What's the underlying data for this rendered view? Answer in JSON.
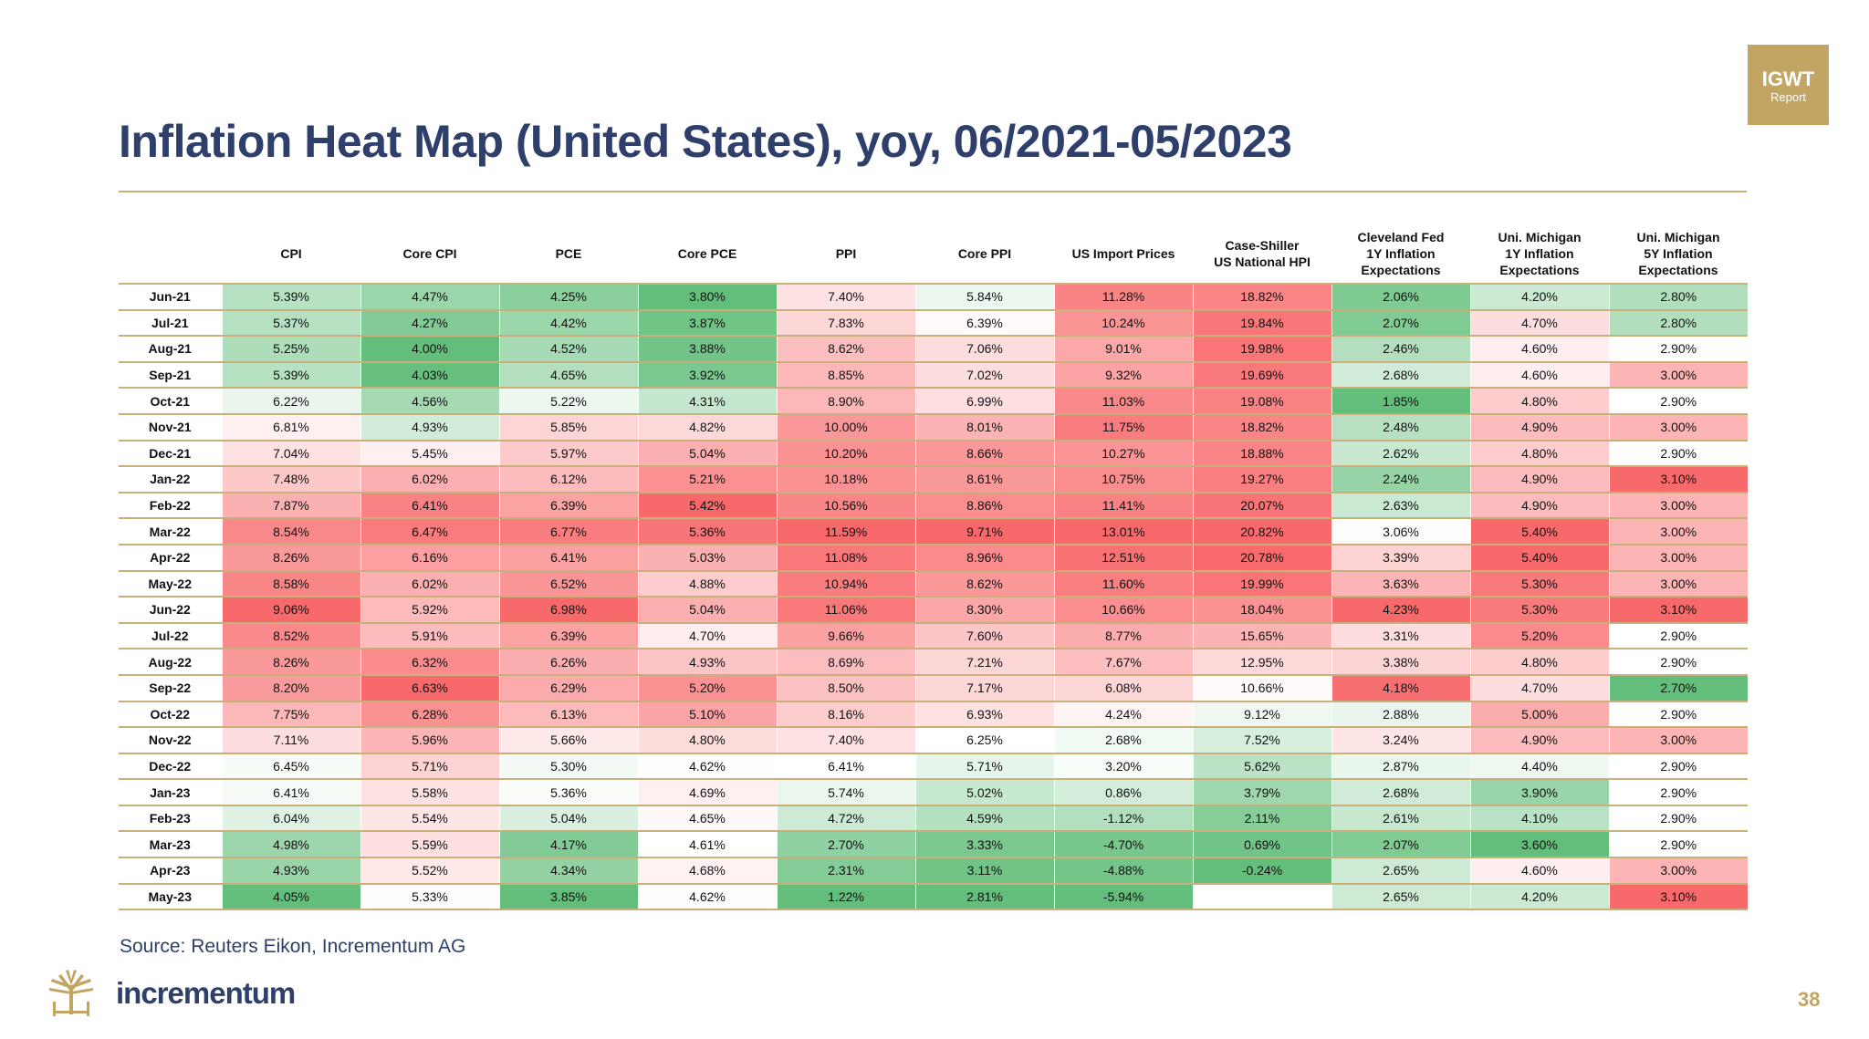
{
  "badge": {
    "line1": "IGWT",
    "line2": "Report"
  },
  "title": "Inflation Heat Map (United States), yoy, 06/2021-05/2023",
  "source": "Source: Reuters Eikon, Incrementum AG",
  "logo_text": "incrementum",
  "page_number": "38",
  "colors": {
    "high": "#f8696b",
    "mid": "#ffffff",
    "low": "#63be7b",
    "accent": "#c2a463",
    "title": "#2e3f6c"
  },
  "chart_data": {
    "type": "heatmap",
    "title": "Inflation Heat Map (United States), yoy, 06/2021-05/2023",
    "columns": [
      "CPI",
      "Core CPI",
      "PCE",
      "Core PCE",
      "PPI",
      "Core PPI",
      "US Import Prices",
      "Case-Shiller\nUS National HPI",
      "Cleveland Fed\n1Y Inflation\nExpectations",
      "Uni. Michigan\n1Y Inflation\nExpectations",
      "Uni. Michigan\n5Y Inflation\nExpectations"
    ],
    "rows": [
      "Jun-21",
      "Jul-21",
      "Aug-21",
      "Sep-21",
      "Oct-21",
      "Nov-21",
      "Dec-21",
      "Jan-22",
      "Feb-22",
      "Mar-22",
      "Apr-22",
      "May-22",
      "Jun-22",
      "Jul-22",
      "Aug-22",
      "Sep-22",
      "Oct-22",
      "Nov-22",
      "Dec-22",
      "Jan-23",
      "Feb-23",
      "Mar-23",
      "Apr-23",
      "May-23"
    ],
    "values": [
      [
        "5.39%",
        "4.47%",
        "4.25%",
        "3.80%",
        "7.40%",
        "5.84%",
        "11.28%",
        "18.82%",
        "2.06%",
        "4.20%",
        "2.80%"
      ],
      [
        "5.37%",
        "4.27%",
        "4.42%",
        "3.87%",
        "7.83%",
        "6.39%",
        "10.24%",
        "19.84%",
        "2.07%",
        "4.70%",
        "2.80%"
      ],
      [
        "5.25%",
        "4.00%",
        "4.52%",
        "3.88%",
        "8.62%",
        "7.06%",
        "9.01%",
        "19.98%",
        "2.46%",
        "4.60%",
        "2.90%"
      ],
      [
        "5.39%",
        "4.03%",
        "4.65%",
        "3.92%",
        "8.85%",
        "7.02%",
        "9.32%",
        "19.69%",
        "2.68%",
        "4.60%",
        "3.00%"
      ],
      [
        "6.22%",
        "4.56%",
        "5.22%",
        "4.31%",
        "8.90%",
        "6.99%",
        "11.03%",
        "19.08%",
        "1.85%",
        "4.80%",
        "2.90%"
      ],
      [
        "6.81%",
        "4.93%",
        "5.85%",
        "4.82%",
        "10.00%",
        "8.01%",
        "11.75%",
        "18.82%",
        "2.48%",
        "4.90%",
        "3.00%"
      ],
      [
        "7.04%",
        "5.45%",
        "5.97%",
        "5.04%",
        "10.20%",
        "8.66%",
        "10.27%",
        "18.88%",
        "2.62%",
        "4.80%",
        "2.90%"
      ],
      [
        "7.48%",
        "6.02%",
        "6.12%",
        "5.21%",
        "10.18%",
        "8.61%",
        "10.75%",
        "19.27%",
        "2.24%",
        "4.90%",
        "3.10%"
      ],
      [
        "7.87%",
        "6.41%",
        "6.39%",
        "5.42%",
        "10.56%",
        "8.86%",
        "11.41%",
        "20.07%",
        "2.63%",
        "4.90%",
        "3.00%"
      ],
      [
        "8.54%",
        "6.47%",
        "6.77%",
        "5.36%",
        "11.59%",
        "9.71%",
        "13.01%",
        "20.82%",
        "3.06%",
        "5.40%",
        "3.00%"
      ],
      [
        "8.26%",
        "6.16%",
        "6.41%",
        "5.03%",
        "11.08%",
        "8.96%",
        "12.51%",
        "20.78%",
        "3.39%",
        "5.40%",
        "3.00%"
      ],
      [
        "8.58%",
        "6.02%",
        "6.52%",
        "4.88%",
        "10.94%",
        "8.62%",
        "11.60%",
        "19.99%",
        "3.63%",
        "5.30%",
        "3.00%"
      ],
      [
        "9.06%",
        "5.92%",
        "6.98%",
        "5.04%",
        "11.06%",
        "8.30%",
        "10.66%",
        "18.04%",
        "4.23%",
        "5.30%",
        "3.10%"
      ],
      [
        "8.52%",
        "5.91%",
        "6.39%",
        "4.70%",
        "9.66%",
        "7.60%",
        "8.77%",
        "15.65%",
        "3.31%",
        "5.20%",
        "2.90%"
      ],
      [
        "8.26%",
        "6.32%",
        "6.26%",
        "4.93%",
        "8.69%",
        "7.21%",
        "7.67%",
        "12.95%",
        "3.38%",
        "4.80%",
        "2.90%"
      ],
      [
        "8.20%",
        "6.63%",
        "6.29%",
        "5.20%",
        "8.50%",
        "7.17%",
        "6.08%",
        "10.66%",
        "4.18%",
        "4.70%",
        "2.70%"
      ],
      [
        "7.75%",
        "6.28%",
        "6.13%",
        "5.10%",
        "8.16%",
        "6.93%",
        "4.24%",
        "9.12%",
        "2.88%",
        "5.00%",
        "2.90%"
      ],
      [
        "7.11%",
        "5.96%",
        "5.66%",
        "4.80%",
        "7.40%",
        "6.25%",
        "2.68%",
        "7.52%",
        "3.24%",
        "4.90%",
        "3.00%"
      ],
      [
        "6.45%",
        "5.71%",
        "5.30%",
        "4.62%",
        "6.41%",
        "5.71%",
        "3.20%",
        "5.62%",
        "2.87%",
        "4.40%",
        "2.90%"
      ],
      [
        "6.41%",
        "5.58%",
        "5.36%",
        "4.69%",
        "5.74%",
        "5.02%",
        "0.86%",
        "3.79%",
        "2.68%",
        "3.90%",
        "2.90%"
      ],
      [
        "6.04%",
        "5.54%",
        "5.04%",
        "4.65%",
        "4.72%",
        "4.59%",
        "-1.12%",
        "2.11%",
        "2.61%",
        "4.10%",
        "2.90%"
      ],
      [
        "4.98%",
        "5.59%",
        "4.17%",
        "4.61%",
        "2.70%",
        "3.33%",
        "-4.70%",
        "0.69%",
        "2.07%",
        "3.60%",
        "2.90%"
      ],
      [
        "4.93%",
        "5.52%",
        "4.34%",
        "4.68%",
        "2.31%",
        "3.11%",
        "-4.88%",
        "-0.24%",
        "2.65%",
        "4.60%",
        "3.00%"
      ],
      [
        "4.05%",
        "5.33%",
        "3.85%",
        "4.62%",
        "1.22%",
        "2.81%",
        "-5.94%",
        "",
        "2.65%",
        "4.20%",
        "3.10%"
      ]
    ]
  }
}
